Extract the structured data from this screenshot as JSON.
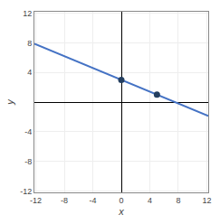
{
  "chart_data": {
    "type": "line",
    "xlabel": "x",
    "ylabel": "y",
    "series": [
      {
        "type": "line",
        "color": "#4472c4",
        "x": [
          -12.2,
          12.2
        ],
        "values": [
          7.88,
          -1.88
        ]
      },
      {
        "type": "scatter",
        "color": "#243f60",
        "marker": "circle",
        "x": [
          0,
          5
        ],
        "values": [
          3,
          1
        ]
      }
    ],
    "xlim": [
      -12.2,
      12.2
    ],
    "ylim": [
      -12.2,
      12.2
    ],
    "xticks": [
      -12,
      -8,
      -4,
      0,
      4,
      8,
      12
    ],
    "yticks": [
      -12,
      -8,
      -4,
      4,
      8,
      12
    ],
    "grid": true
  }
}
